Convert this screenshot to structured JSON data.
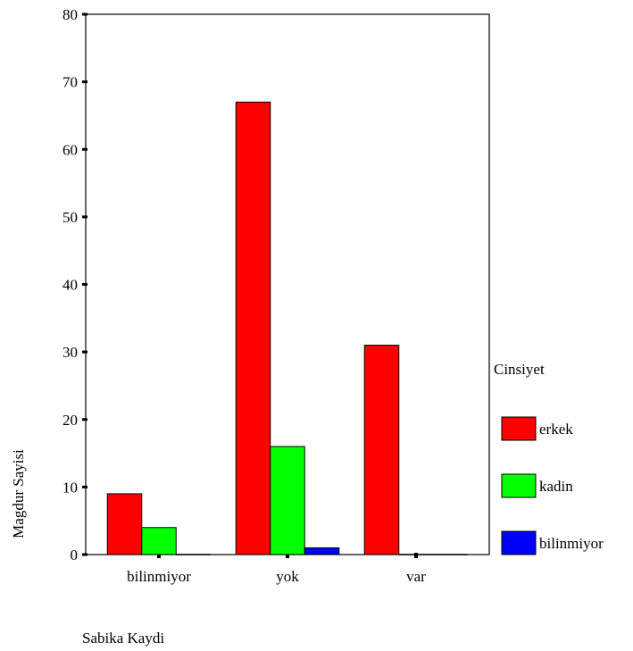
{
  "chart_data": {
    "type": "bar",
    "title": "",
    "xlabel": "Sabika Kaydi",
    "ylabel": "Magdur Sayisi",
    "ylim": [
      0,
      80
    ],
    "yticks": [
      0,
      10,
      20,
      30,
      40,
      50,
      60,
      70,
      80
    ],
    "categories": [
      "bilinmiyor",
      "yok",
      "var"
    ],
    "legend_title": "Cinsiyet",
    "legend_position": "right",
    "grid": false,
    "series": [
      {
        "name": "erkek",
        "color": "#ff0000",
        "values": [
          9,
          67,
          31
        ]
      },
      {
        "name": "kadin",
        "color": "#00ff00",
        "values": [
          4,
          16,
          0
        ]
      },
      {
        "name": "bilinmiyor",
        "color": "#0000ff",
        "values": [
          0,
          1,
          0
        ]
      }
    ]
  }
}
